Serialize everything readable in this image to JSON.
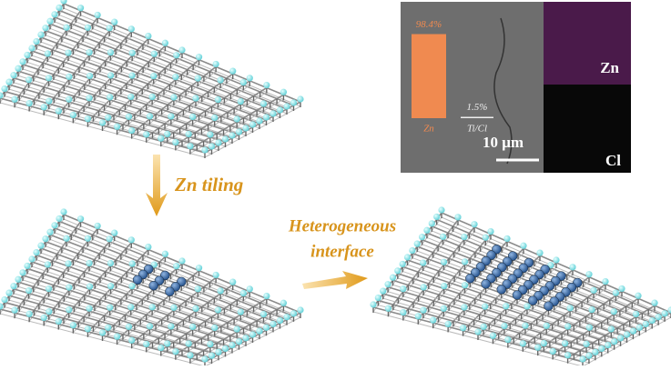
{
  "inset": {
    "bars": [
      {
        "label": "Zn",
        "value": 98.4,
        "value_label": "98.4%"
      },
      {
        "label": "Ti/Cl",
        "value": 1.5,
        "value_label": "1.5%"
      }
    ],
    "scale_bar": "10 μm",
    "maps": [
      "Zn",
      "Cl"
    ]
  },
  "steps": [
    {
      "label": "Zn tiling"
    },
    {
      "label_lines": [
        "Heterogeneous",
        "interface"
      ]
    }
  ]
}
